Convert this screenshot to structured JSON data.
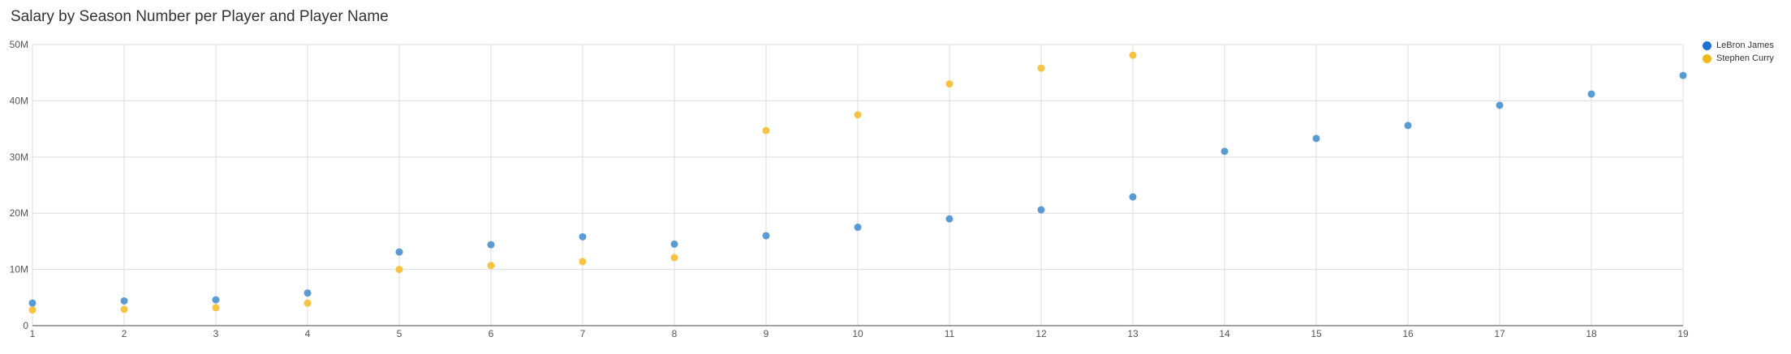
{
  "chart_data": {
    "type": "scatter",
    "title": "Salary by Season Number per Player and Player Name",
    "xlabel": "",
    "ylabel": "",
    "xlim": [
      1,
      19
    ],
    "ylim": [
      0,
      50000000
    ],
    "x_ticks": [
      "1",
      "2",
      "3",
      "4",
      "5",
      "6",
      "7",
      "8",
      "9",
      "10",
      "11",
      "12",
      "13",
      "14",
      "15",
      "16",
      "17",
      "18",
      "19"
    ],
    "y_ticks": [
      {
        "value": 0,
        "label": "0"
      },
      {
        "value": 10000000,
        "label": "10M"
      },
      {
        "value": 20000000,
        "label": "20M"
      },
      {
        "value": 30000000,
        "label": "30M"
      },
      {
        "value": 40000000,
        "label": "40M"
      },
      {
        "value": 50000000,
        "label": "50M"
      }
    ],
    "grid": true,
    "legend_position": "top-right",
    "series": [
      {
        "name": "LeBron James",
        "color": "#5b9bd5",
        "legend_color": "#1f6fd1",
        "x": [
          1,
          2,
          3,
          4,
          5,
          6,
          7,
          8,
          9,
          10,
          11,
          12,
          13,
          14,
          15,
          16,
          17,
          18,
          19
        ],
        "y": [
          4000000,
          4400000,
          4600000,
          5800000,
          13100000,
          14400000,
          15800000,
          14500000,
          16000000,
          17500000,
          19000000,
          20600000,
          22900000,
          31000000,
          33300000,
          35600000,
          39200000,
          41200000,
          44500000
        ]
      },
      {
        "name": "Stephen Curry",
        "color": "#f6c343",
        "legend_color": "#f0b81e",
        "x": [
          1,
          2,
          3,
          4,
          5,
          6,
          7,
          8,
          9,
          10,
          11,
          12,
          13
        ],
        "y": [
          2800000,
          2900000,
          3200000,
          4000000,
          10000000,
          10700000,
          11400000,
          12100000,
          34700000,
          37500000,
          43000000,
          45800000,
          48100000
        ]
      }
    ]
  }
}
